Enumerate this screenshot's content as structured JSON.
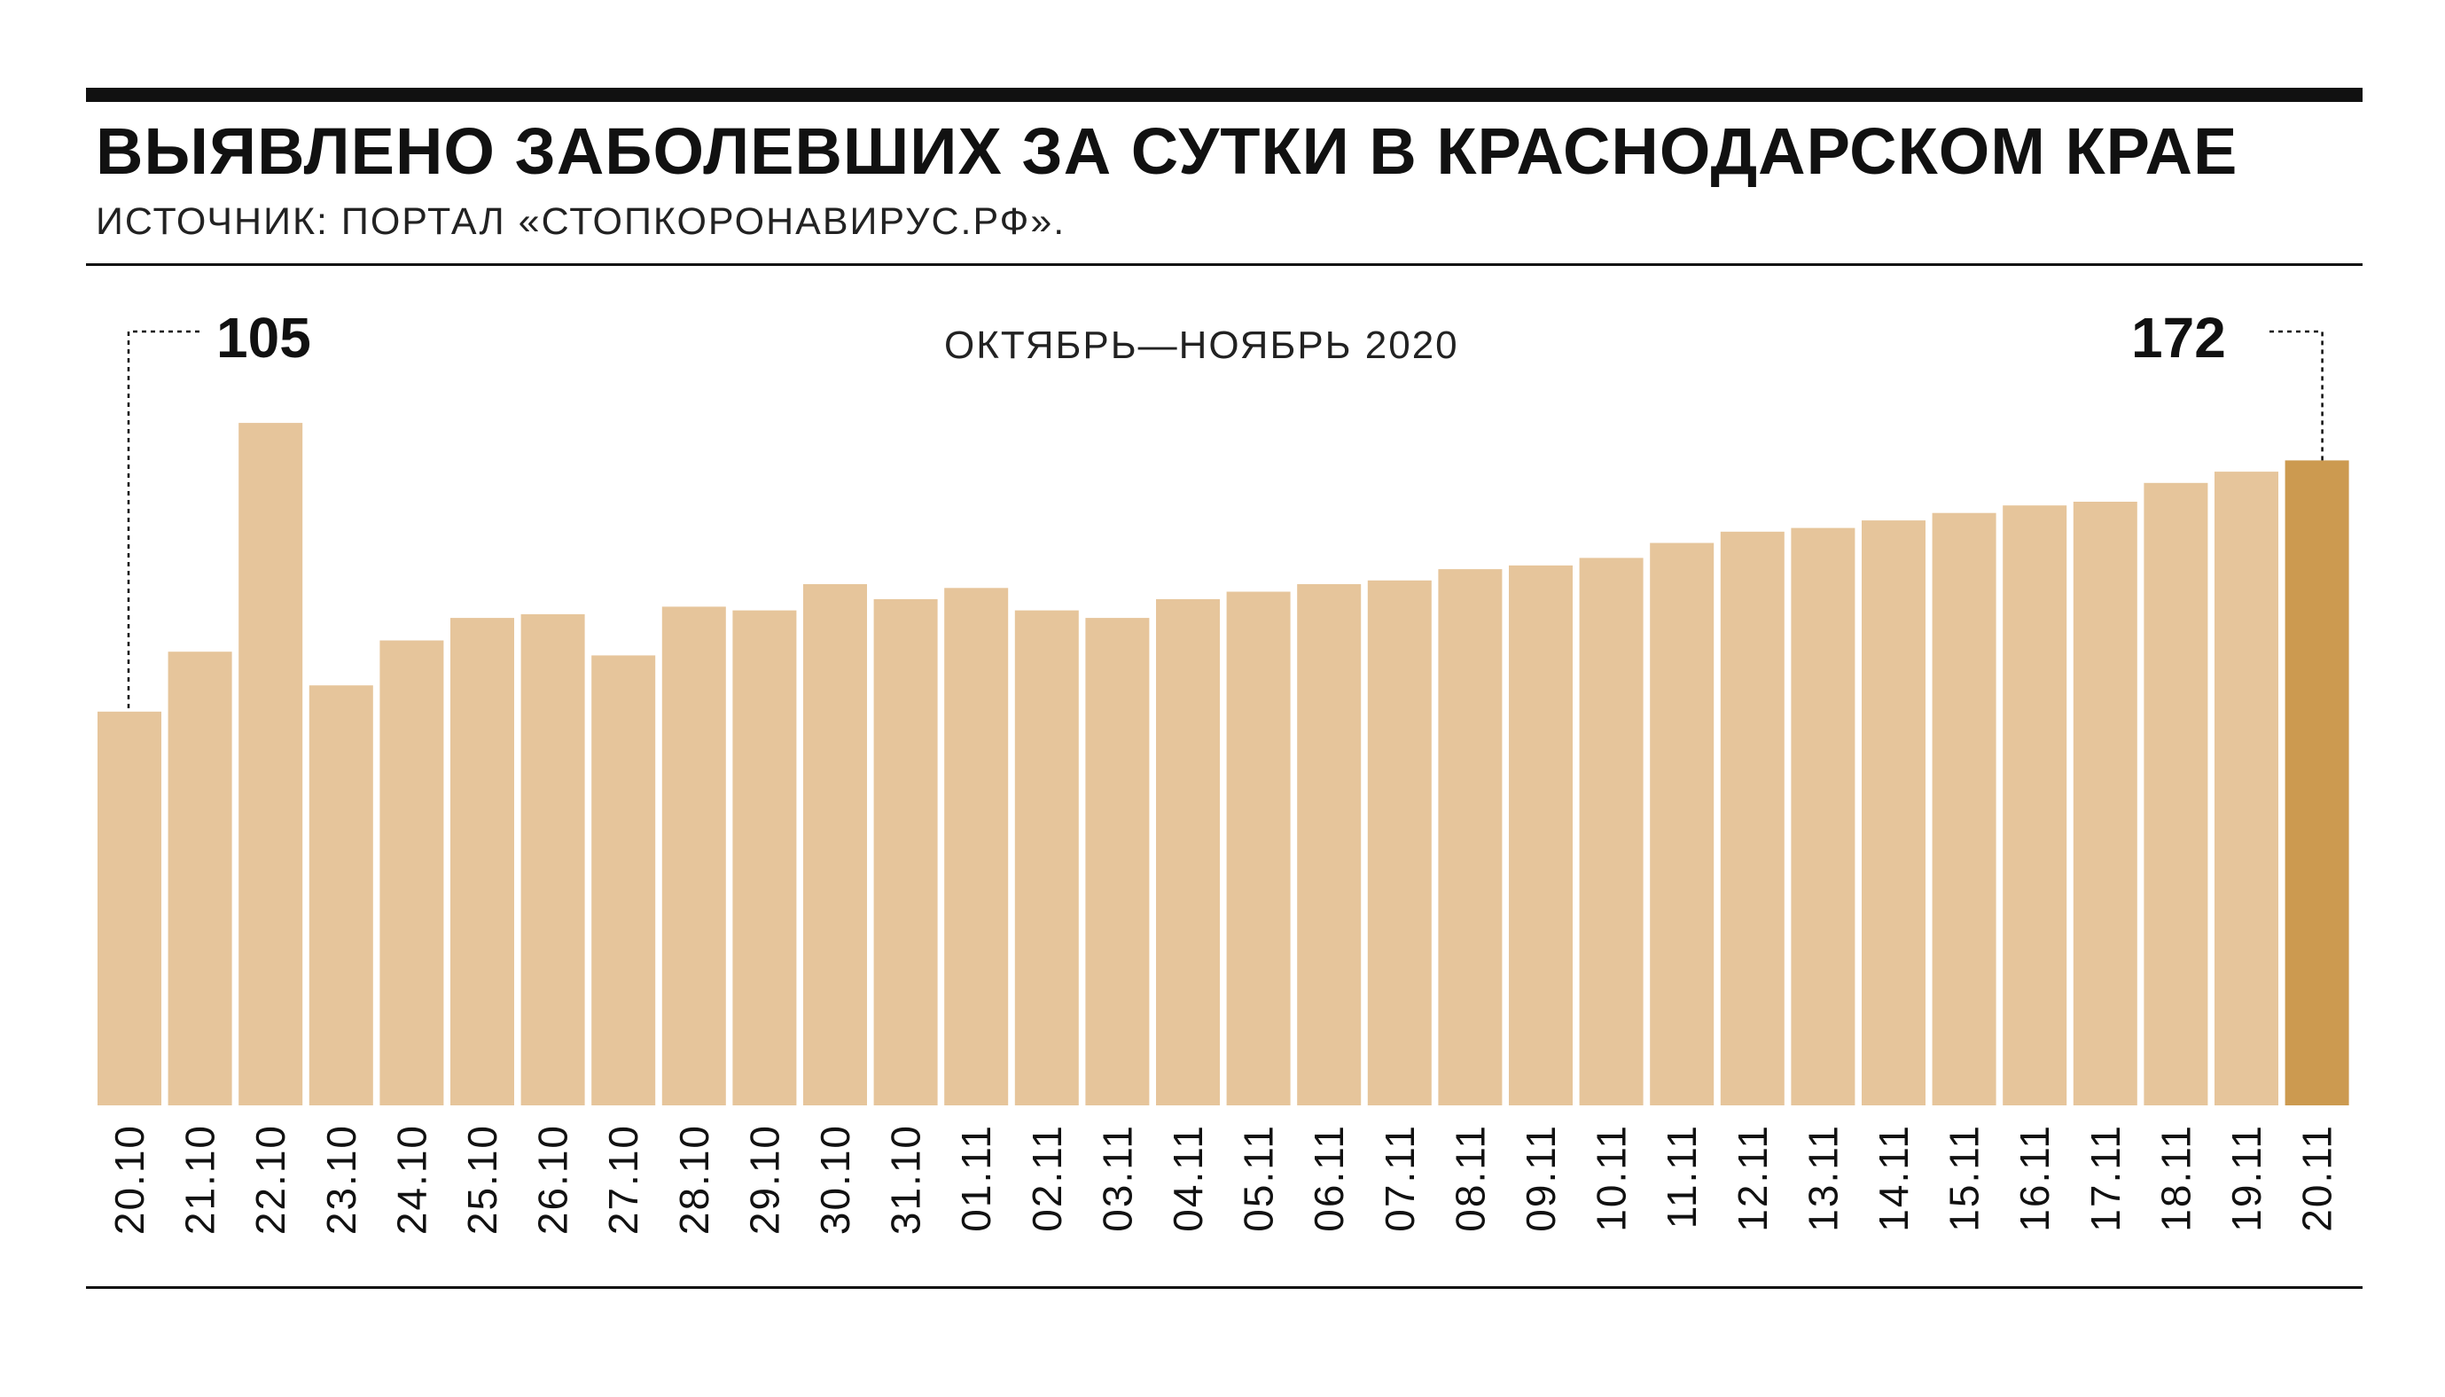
{
  "header": {
    "title_regular": "ВЫЯВЛЕНО ЗАБОЛЕВШИХ ЗА СУТКИ В ",
    "title_bold": "КРАСНОДАРСКОМ КРАЕ",
    "source": "ИСТОЧНИК: ПОРТАЛ «СТОПКОРОНАВИРУС.РФ».",
    "period": "ОКТЯБРЬ—НОЯБРЬ 2020"
  },
  "colors": {
    "bar": "#e6c59b",
    "bar_highlight": "#cc9a50",
    "rule": "#111111"
  },
  "chart_data": {
    "type": "bar",
    "title": "ВЫЯВЛЕНО ЗАБОЛЕВШИХ ЗА СУТКИ В КРАСНОДАРСКОМ КРАЕ",
    "categories": [
      "20.10",
      "21.10",
      "22.10",
      "23.10",
      "24.10",
      "25.10",
      "26.10",
      "27.10",
      "28.10",
      "29.10",
      "30.10",
      "31.10",
      "01.11",
      "02.11",
      "03.11",
      "04.11",
      "05.11",
      "06.11",
      "07.11",
      "08.11",
      "09.11",
      "10.11",
      "11.11",
      "12.11",
      "13.11",
      "14.11",
      "15.11",
      "16.11",
      "17.11",
      "18.11",
      "19.11",
      "20.11"
    ],
    "values": [
      105,
      121,
      182,
      112,
      124,
      130,
      131,
      120,
      133,
      132,
      139,
      135,
      138,
      132,
      130,
      135,
      137,
      139,
      140,
      143,
      144,
      146,
      150,
      153,
      154,
      156,
      158,
      160,
      161,
      166,
      169,
      172
    ],
    "data_labels": [
      {
        "category": "20.10",
        "text": "105"
      },
      {
        "category": "20.11",
        "text": "172"
      }
    ],
    "highlight_category": "20.11",
    "ylim": [
      0,
      190
    ],
    "grid": false,
    "xlabel": "",
    "ylabel": ""
  }
}
